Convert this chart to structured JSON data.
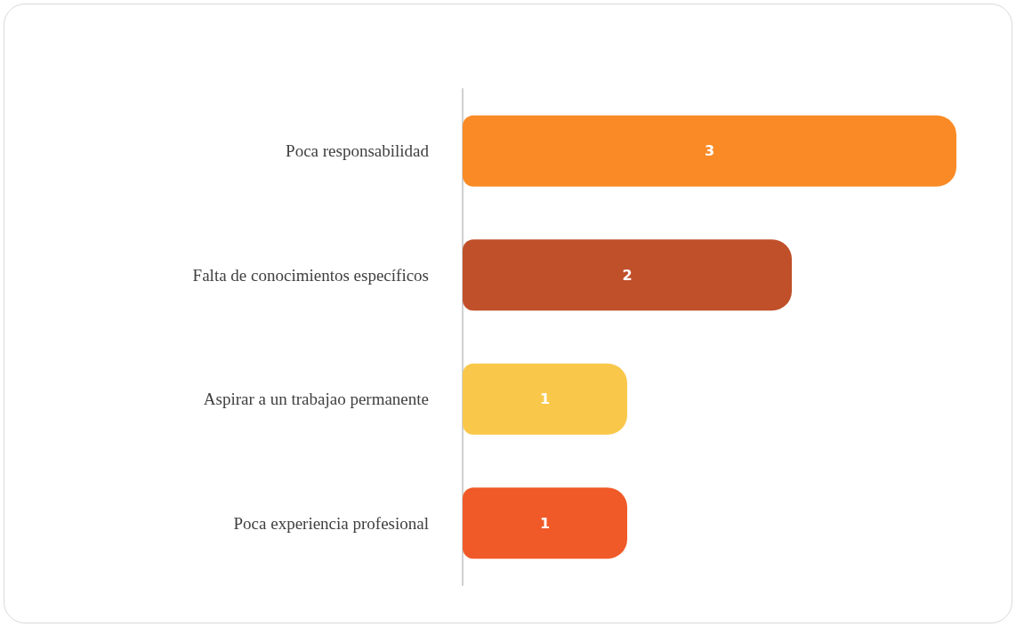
{
  "chart_data": {
    "type": "bar",
    "orientation": "horizontal",
    "categories": [
      "Poca responsabilidad",
      "Falta de conocimientos específicos",
      "Aspirar a un trabajao permanente",
      "Poca experiencia profesional"
    ],
    "values": [
      3,
      2,
      1,
      1
    ],
    "colors": [
      "#f98a25",
      "#c0502a",
      "#f9c84a",
      "#f05a28"
    ],
    "data_labels": true,
    "tick_labels": "y"
  }
}
